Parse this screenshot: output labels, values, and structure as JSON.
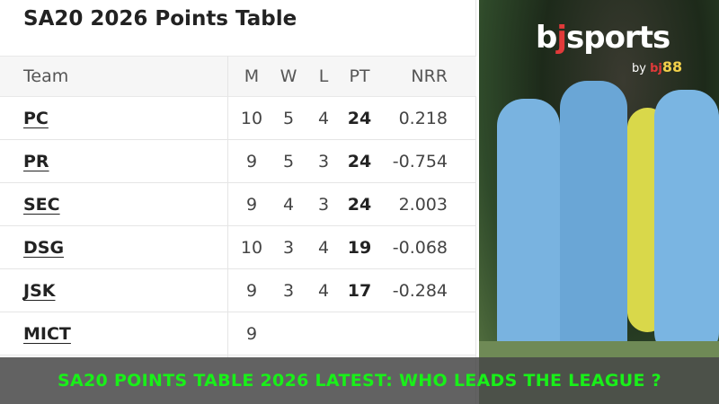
{
  "title": "SA20 2026 Points Table",
  "columns": {
    "team": "Team",
    "m": "M",
    "w": "W",
    "l": "L",
    "pt": "PT",
    "nrr": "NRR"
  },
  "rows": [
    {
      "team": "PC",
      "m": "10",
      "w": "5",
      "l": "4",
      "pt": "24",
      "nrr": "0.218"
    },
    {
      "team": "PR",
      "m": "9",
      "w": "5",
      "l": "3",
      "pt": "24",
      "nrr": "-0.754"
    },
    {
      "team": "SEC",
      "m": "9",
      "w": "4",
      "l": "3",
      "pt": "24",
      "nrr": "2.003"
    },
    {
      "team": "DSG",
      "m": "10",
      "w": "3",
      "l": "4",
      "pt": "19",
      "nrr": "-0.068"
    },
    {
      "team": "JSK",
      "m": "9",
      "w": "3",
      "l": "4",
      "pt": "17",
      "nrr": "-0.284"
    },
    {
      "team": "MICT",
      "m": "9"
    }
  ],
  "logo": {
    "text_b": "b",
    "text_j": "j",
    "text_rest": "sports",
    "by": "by",
    "by_bj": "bj",
    "by_88": "88"
  },
  "banner": "SA20 POINTS TABLE 2026 LATEST: WHO LEADS THE LEAGUE ?"
}
